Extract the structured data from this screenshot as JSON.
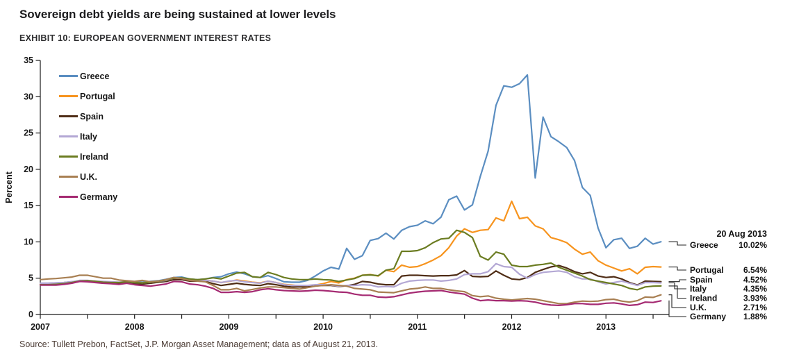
{
  "header": {
    "title": "Sovereign debt yields are being sustained at lower levels",
    "exhibit": "EXHIBIT 10: EUROPEAN GOVERNMENT INTEREST RATES"
  },
  "footer": {
    "source": "Source: Tullett Prebon, FactSet, J.P. Morgan Asset Management; data as of August 21, 2013."
  },
  "annotation": {
    "header": "20 Aug 2013",
    "rows": [
      {
        "label": "Greece",
        "value": "10.02%"
      },
      {
        "label": "Portugal",
        "value": "6.54%"
      },
      {
        "label": "Spain",
        "value": "4.52%"
      },
      {
        "label": "Italy",
        "value": "4.35%"
      },
      {
        "label": "Ireland",
        "value": "3.93%"
      },
      {
        "label": "U.K.",
        "value": "2.71%"
      },
      {
        "label": "Germany",
        "value": "1.88%"
      }
    ]
  },
  "chart_data": {
    "type": "line",
    "title": "EXHIBIT 10: EUROPEAN GOVERNMENT INTEREST RATES",
    "xlabel": "",
    "ylabel": "Percent",
    "ylim": [
      0,
      35
    ],
    "yticks": [
      0,
      5,
      10,
      15,
      20,
      25,
      30,
      35
    ],
    "xticks_years": [
      2007,
      2008,
      2009,
      2010,
      2011,
      2012,
      2013
    ],
    "xlim": [
      2007.0,
      2013.67
    ],
    "x_start": 2007.0,
    "x_step": 0.0833333,
    "grid": false,
    "legend_position": "top-left",
    "series": [
      {
        "name": "Greece",
        "color": "#5b8ec1",
        "values": [
          4.3,
          4.3,
          4.35,
          4.4,
          4.5,
          4.6,
          4.6,
          4.55,
          4.5,
          4.45,
          4.4,
          4.5,
          4.5,
          4.45,
          4.55,
          4.65,
          4.85,
          5.1,
          5.15,
          4.9,
          4.8,
          4.9,
          5.1,
          5.2,
          5.6,
          5.85,
          5.6,
          5.2,
          5.1,
          5.35,
          4.95,
          4.5,
          4.45,
          4.45,
          4.7,
          5.3,
          6.0,
          6.5,
          6.25,
          9.1,
          7.6,
          8.1,
          10.2,
          10.45,
          11.2,
          10.4,
          11.6,
          12.1,
          12.3,
          12.9,
          12.5,
          13.4,
          15.8,
          16.3,
          14.4,
          15.1,
          19.0,
          22.5,
          28.8,
          31.5,
          31.3,
          31.8,
          33.0,
          18.8,
          27.2,
          24.5,
          23.8,
          23.0,
          21.2,
          17.5,
          16.4,
          11.9,
          9.2,
          10.3,
          10.5,
          9.1,
          9.4,
          10.5,
          9.7,
          10.02
        ]
      },
      {
        "name": "Portugal",
        "color": "#f7941e",
        "values": [
          4.2,
          4.2,
          4.25,
          4.3,
          4.4,
          4.6,
          4.65,
          4.6,
          4.5,
          4.45,
          4.4,
          4.45,
          4.4,
          4.35,
          4.45,
          4.55,
          4.75,
          4.95,
          4.95,
          4.75,
          4.65,
          4.7,
          4.6,
          4.4,
          4.55,
          4.75,
          4.6,
          4.45,
          4.35,
          4.6,
          4.4,
          4.15,
          4.05,
          3.95,
          3.9,
          4.05,
          4.25,
          4.55,
          4.35,
          4.8,
          5.0,
          5.4,
          5.5,
          5.3,
          6.1,
          5.9,
          6.8,
          6.5,
          6.6,
          7.0,
          7.5,
          8.1,
          9.2,
          10.8,
          11.8,
          11.3,
          11.6,
          11.7,
          13.3,
          12.9,
          15.6,
          13.2,
          13.4,
          12.2,
          11.8,
          10.6,
          10.3,
          9.9,
          9.0,
          8.3,
          8.6,
          7.4,
          6.8,
          6.4,
          6.0,
          6.3,
          5.6,
          6.5,
          6.6,
          6.54
        ]
      },
      {
        "name": "Spain",
        "color": "#4f2d16",
        "values": [
          4.1,
          4.1,
          4.15,
          4.2,
          4.35,
          4.55,
          4.6,
          4.5,
          4.45,
          4.4,
          4.35,
          4.4,
          4.25,
          4.2,
          4.3,
          4.45,
          4.55,
          4.8,
          4.8,
          4.6,
          4.6,
          4.55,
          4.25,
          4.0,
          4.15,
          4.3,
          4.15,
          4.05,
          4.0,
          4.25,
          4.1,
          3.9,
          3.8,
          3.8,
          3.8,
          3.95,
          4.0,
          4.0,
          3.85,
          3.95,
          4.15,
          4.55,
          4.45,
          4.2,
          4.1,
          4.1,
          5.3,
          5.4,
          5.4,
          5.35,
          5.3,
          5.35,
          5.35,
          5.45,
          6.05,
          5.25,
          5.2,
          5.25,
          6.0,
          5.4,
          4.9,
          4.8,
          5.1,
          5.8,
          6.2,
          6.55,
          6.75,
          6.4,
          5.9,
          5.6,
          5.8,
          5.3,
          5.1,
          5.2,
          4.9,
          4.4,
          4.05,
          4.6,
          4.55,
          4.52
        ]
      },
      {
        "name": "Italy",
        "color": "#b3a7d4",
        "values": [
          4.3,
          4.3,
          4.35,
          4.4,
          4.5,
          4.7,
          4.7,
          4.6,
          4.55,
          4.5,
          4.45,
          4.5,
          4.4,
          4.35,
          4.45,
          4.55,
          4.7,
          5.0,
          5.0,
          4.8,
          4.7,
          4.7,
          4.6,
          4.4,
          4.6,
          4.7,
          4.5,
          4.4,
          4.3,
          4.6,
          4.4,
          4.1,
          4.0,
          4.0,
          4.0,
          4.1,
          4.1,
          4.05,
          3.9,
          4.0,
          4.0,
          4.1,
          4.05,
          3.8,
          3.85,
          3.8,
          4.3,
          4.6,
          4.7,
          4.75,
          4.75,
          4.6,
          4.7,
          4.9,
          5.5,
          5.6,
          5.6,
          5.9,
          7.0,
          6.6,
          6.5,
          5.55,
          5.0,
          5.5,
          5.8,
          5.9,
          6.0,
          5.8,
          5.2,
          4.9,
          4.9,
          4.5,
          4.2,
          4.4,
          4.6,
          4.3,
          4.0,
          4.4,
          4.4,
          4.35
        ]
      },
      {
        "name": "Ireland",
        "color": "#6b7c21",
        "values": [
          4.1,
          4.1,
          4.15,
          4.25,
          4.4,
          4.6,
          4.65,
          4.55,
          4.45,
          4.4,
          4.4,
          4.5,
          4.4,
          4.35,
          4.45,
          4.55,
          4.75,
          5.0,
          5.05,
          4.9,
          4.8,
          4.9,
          5.05,
          4.9,
          5.3,
          5.7,
          5.8,
          5.2,
          5.1,
          5.8,
          5.5,
          5.1,
          4.9,
          4.8,
          4.8,
          4.9,
          4.8,
          4.75,
          4.55,
          4.75,
          4.95,
          5.4,
          5.45,
          5.35,
          6.1,
          6.3,
          8.7,
          8.7,
          8.8,
          9.2,
          9.9,
          10.4,
          10.5,
          11.6,
          11.3,
          10.6,
          8.0,
          7.5,
          8.6,
          8.3,
          6.8,
          6.6,
          6.6,
          6.8,
          6.9,
          7.1,
          6.5,
          6.1,
          5.7,
          5.3,
          4.8,
          4.6,
          4.4,
          4.2,
          4.0,
          3.6,
          3.4,
          3.8,
          3.9,
          3.93
        ]
      },
      {
        "name": "U.K.",
        "color": "#a87f52",
        "values": [
          4.8,
          4.9,
          4.95,
          5.05,
          5.15,
          5.4,
          5.4,
          5.2,
          5.0,
          5.0,
          4.75,
          4.65,
          4.55,
          4.7,
          4.5,
          4.6,
          4.8,
          5.1,
          4.95,
          4.7,
          4.6,
          4.5,
          4.0,
          3.4,
          3.4,
          3.6,
          3.25,
          3.45,
          3.65,
          3.8,
          3.8,
          3.7,
          3.6,
          3.5,
          3.7,
          3.9,
          4.0,
          4.1,
          4.0,
          3.9,
          3.6,
          3.5,
          3.4,
          3.1,
          3.05,
          3.0,
          3.25,
          3.5,
          3.6,
          3.8,
          3.6,
          3.6,
          3.4,
          3.25,
          3.15,
          2.6,
          2.45,
          2.55,
          2.25,
          2.1,
          2.0,
          2.1,
          2.2,
          2.1,
          1.9,
          1.7,
          1.5,
          1.5,
          1.7,
          1.85,
          1.8,
          1.85,
          2.05,
          2.1,
          1.85,
          1.7,
          1.9,
          2.4,
          2.35,
          2.71
        ]
      },
      {
        "name": "Germany",
        "color": "#a52a72",
        "values": [
          4.05,
          4.05,
          4.05,
          4.15,
          4.3,
          4.55,
          4.5,
          4.4,
          4.3,
          4.25,
          4.15,
          4.3,
          4.1,
          4.0,
          3.9,
          4.05,
          4.2,
          4.55,
          4.5,
          4.2,
          4.1,
          3.9,
          3.6,
          3.05,
          3.05,
          3.15,
          3.05,
          3.15,
          3.4,
          3.55,
          3.4,
          3.3,
          3.25,
          3.2,
          3.25,
          3.35,
          3.3,
          3.2,
          3.1,
          3.05,
          2.8,
          2.65,
          2.65,
          2.4,
          2.35,
          2.45,
          2.7,
          2.95,
          3.1,
          3.2,
          3.25,
          3.3,
          3.1,
          2.95,
          2.8,
          2.25,
          1.9,
          2.0,
          1.9,
          1.9,
          1.85,
          1.9,
          1.85,
          1.7,
          1.45,
          1.3,
          1.25,
          1.35,
          1.5,
          1.5,
          1.4,
          1.4,
          1.55,
          1.6,
          1.45,
          1.25,
          1.35,
          1.7,
          1.65,
          1.88
        ]
      }
    ]
  }
}
